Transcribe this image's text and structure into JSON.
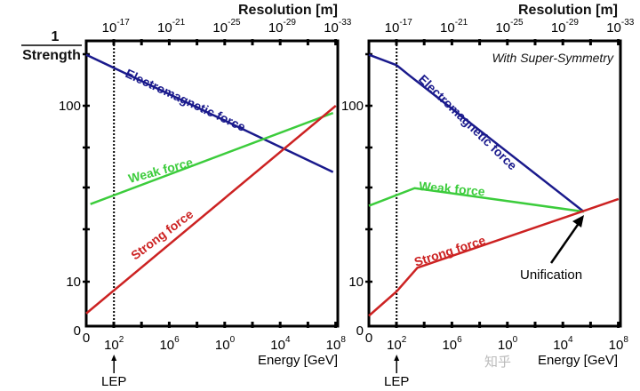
{
  "chart_data": [
    {
      "type": "line",
      "title": "",
      "xlabel": "Energy [GeV]",
      "x2label": "Resolution [m]",
      "ylabel_numerator": "1",
      "ylabel_denominator": "Strength",
      "x_scale": "log10(Energy)",
      "xlim": [
        0,
        18
      ],
      "ylim_log": [
        0.75,
        2.35
      ],
      "x_ticks": [
        {
          "base": "0",
          "exp": ""
        },
        {
          "base": "10",
          "exp": "2"
        },
        {
          "base": "10",
          "exp": "6"
        },
        {
          "base": "10",
          "exp": "0"
        },
        {
          "base": "10",
          "exp": "4"
        },
        {
          "base": "10",
          "exp": "8"
        }
      ],
      "x2_ticks": [
        {
          "base": "10",
          "exp": "-17"
        },
        {
          "base": "10",
          "exp": "-21"
        },
        {
          "base": "10",
          "exp": "-25"
        },
        {
          "base": "10",
          "exp": "-29"
        },
        {
          "base": "10",
          "exp": "-33"
        }
      ],
      "y_ticks": [
        "100",
        "10",
        "0"
      ],
      "annotation_lep": "LEP",
      "series": [
        {
          "name": "Electromagnetic force",
          "color": "#1a1a8c",
          "x": [
            0,
            17.8
          ],
          "y": [
            195,
            42
          ]
        },
        {
          "name": "Weak force",
          "color": "#3ccc3c",
          "x": [
            0.3,
            17.8
          ],
          "y": [
            27.6,
            91
          ]
        },
        {
          "name": "Strong force",
          "color": "#cc2222",
          "x": [
            0,
            18
          ],
          "y": [
            6.6,
            100
          ]
        }
      ]
    },
    {
      "type": "line",
      "title": "With Super-Symmetry",
      "xlabel": "Energy [GeV]",
      "x2label": "Resolution [m]",
      "x_scale": "log10(Energy)",
      "xlim": [
        0,
        18
      ],
      "x_ticks": [
        {
          "base": "0",
          "exp": ""
        },
        {
          "base": "10",
          "exp": "2"
        },
        {
          "base": "10",
          "exp": "6"
        },
        {
          "base": "10",
          "exp": "0"
        },
        {
          "base": "10",
          "exp": "4"
        },
        {
          "base": "10",
          "exp": "8"
        }
      ],
      "x2_ticks": [
        {
          "base": "10",
          "exp": "-17"
        },
        {
          "base": "10",
          "exp": "-21"
        },
        {
          "base": "10",
          "exp": "-25"
        },
        {
          "base": "10",
          "exp": "-29"
        },
        {
          "base": "10",
          "exp": "-33"
        }
      ],
      "y_ticks": [
        "100",
        "10",
        "0"
      ],
      "annotation_lep": "LEP",
      "annotation_unification": "Unification",
      "series": [
        {
          "name": "Electromagnetic force",
          "color": "#1a1a8c",
          "x": [
            0,
            2,
            2.95,
            15.5
          ],
          "y": [
            195,
            170,
            148,
            25
          ]
        },
        {
          "name": "Weak force",
          "color": "#3ccc3c",
          "x": [
            0,
            3.3,
            15.5
          ],
          "y": [
            27,
            34,
            25
          ]
        },
        {
          "name": "Strong force",
          "color": "#cc2222",
          "x": [
            0,
            2,
            3.5,
            18
          ],
          "y": [
            6.4,
            8.8,
            12,
            29.5
          ]
        }
      ]
    }
  ],
  "watermark": "知乎"
}
